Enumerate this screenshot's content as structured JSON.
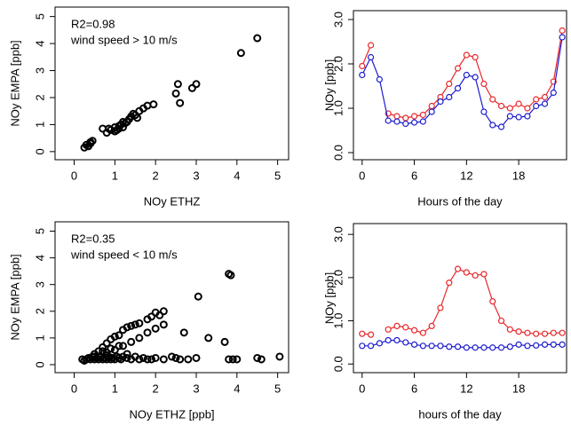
{
  "chart_data": [
    {
      "type": "scatter",
      "x_label": "NOy ETHZ",
      "y_label": "NOy EMPA [ppb]",
      "annotations": [
        "R2=0.98",
        "wind speed > 10 m/s"
      ],
      "color": "#000000",
      "x": [
        0.25,
        0.3,
        0.35,
        0.4,
        0.45,
        0.4,
        0.7,
        0.8,
        0.85,
        0.9,
        1.0,
        1.0,
        1.05,
        1.1,
        1.15,
        1.2,
        1.25,
        1.3,
        1.35,
        1.4,
        1.45,
        1.5,
        1.55,
        1.6,
        1.7,
        1.8,
        1.95,
        1.2,
        1.1,
        2.5,
        2.55,
        2.6,
        2.9,
        3.0,
        4.1,
        4.5
      ],
      "y": [
        0.15,
        0.25,
        0.2,
        0.35,
        0.4,
        0.3,
        0.85,
        0.7,
        0.85,
        0.8,
        0.9,
        0.75,
        0.8,
        0.95,
        1.0,
        0.9,
        1.05,
        1.1,
        1.2,
        1.3,
        1.4,
        1.35,
        1.25,
        1.5,
        1.6,
        1.7,
        1.75,
        1.1,
        0.85,
        2.15,
        2.5,
        1.8,
        2.35,
        2.5,
        3.65,
        4.2
      ],
      "xlim": [
        -0.47,
        5.27
      ],
      "ylim": [
        -0.3,
        5.35
      ],
      "xticks": [
        0,
        1,
        2,
        3,
        4,
        5
      ],
      "yticks": [
        0,
        1,
        2,
        3,
        4,
        5
      ]
    },
    {
      "type": "line",
      "x_label": "Hours of the day",
      "y_label": "NOy [ppb]",
      "x": [
        0,
        1,
        2,
        3,
        4,
        5,
        6,
        7,
        8,
        9,
        10,
        11,
        12,
        13,
        14,
        15,
        16,
        17,
        18,
        19,
        20,
        21,
        22,
        23
      ],
      "series": [
        {
          "color": "#e8262a",
          "values": [
            1.95,
            2.42,
            null,
            0.88,
            0.82,
            0.78,
            0.82,
            0.85,
            1.05,
            1.25,
            1.55,
            1.9,
            2.2,
            2.15,
            1.55,
            1.2,
            1.05,
            1.0,
            1.1,
            1.0,
            1.2,
            1.25,
            1.6,
            2.75
          ]
        },
        {
          "color": "#1c1cd0",
          "values": [
            1.75,
            2.15,
            1.65,
            0.72,
            0.7,
            0.65,
            0.68,
            0.7,
            0.92,
            1.15,
            1.25,
            1.45,
            1.75,
            1.7,
            0.92,
            0.62,
            0.58,
            0.82,
            0.8,
            0.82,
            1.05,
            1.1,
            1.35,
            2.6
          ]
        }
      ],
      "xlim": [
        -1.0,
        23.5
      ],
      "ylim": [
        -0.16,
        3.2
      ],
      "xticks": [
        0,
        6,
        12,
        18
      ],
      "yticks": [
        {
          "value": 0,
          "label": "0.0"
        },
        {
          "value": 1,
          "label": "1.0"
        },
        {
          "value": 2,
          "label": "2.0"
        },
        {
          "value": 3,
          "label": "3.0"
        }
      ]
    },
    {
      "type": "scatter",
      "x_label": "NOy ETHZ [ppb]",
      "y_label": "NOy EMPA [ppb]",
      "annotations": [
        "R2=0.35",
        "wind speed < 10 m/s"
      ],
      "color": "#000000",
      "x": [
        0.2,
        0.25,
        0.3,
        0.35,
        0.4,
        0.45,
        0.5,
        0.55,
        0.6,
        0.65,
        0.7,
        0.75,
        0.8,
        0.85,
        0.9,
        0.95,
        1.0,
        1.05,
        1.1,
        1.15,
        1.2,
        1.3,
        1.4,
        1.5,
        1.6,
        1.7,
        1.8,
        1.9,
        2.0,
        2.2,
        2.4,
        2.5,
        2.6,
        2.8,
        3.0,
        0.5,
        0.6,
        0.7,
        0.8,
        0.9,
        1.0,
        1.1,
        1.2,
        1.3,
        1.4,
        1.5,
        1.6,
        1.8,
        1.9,
        2.0,
        2.1,
        2.2,
        0.6,
        0.8,
        1.0,
        1.2,
        1.4,
        1.6,
        1.8,
        2.0,
        2.2,
        0.7,
        0.9,
        1.1,
        1.3,
        0.5,
        0.8,
        2.7,
        3.05,
        3.3,
        3.7,
        3.8,
        3.85,
        3.8,
        3.9,
        4.0,
        4.5,
        4.6,
        5.05
      ],
      "y": [
        0.2,
        0.15,
        0.2,
        0.25,
        0.2,
        0.3,
        0.2,
        0.25,
        0.2,
        0.3,
        0.2,
        0.25,
        0.2,
        0.3,
        0.2,
        0.25,
        0.2,
        0.3,
        0.25,
        0.2,
        0.3,
        0.25,
        0.2,
        0.3,
        0.2,
        0.25,
        0.2,
        0.2,
        0.25,
        0.2,
        0.3,
        0.25,
        0.2,
        0.2,
        0.25,
        0.4,
        0.5,
        0.65,
        0.8,
        0.95,
        1.05,
        1.1,
        1.3,
        1.4,
        1.45,
        1.5,
        1.55,
        1.7,
        1.8,
        1.95,
        1.85,
        2.0,
        0.3,
        0.45,
        0.55,
        0.7,
        0.85,
        1.0,
        1.2,
        1.35,
        1.5,
        0.5,
        0.6,
        0.7,
        0.4,
        0.3,
        0.35,
        1.2,
        2.55,
        1.0,
        0.85,
        3.4,
        3.35,
        0.2,
        0.2,
        0.2,
        0.25,
        0.2,
        0.3
      ],
      "xlim": [
        -0.47,
        5.27
      ],
      "ylim": [
        -0.3,
        5.35
      ],
      "xticks": [
        0,
        1,
        2,
        3,
        4,
        5
      ],
      "yticks": [
        0,
        1,
        2,
        3,
        4,
        5
      ]
    },
    {
      "type": "line",
      "x_label": "hours of the day",
      "y_label": "NOy [ppb]",
      "x": [
        0,
        1,
        2,
        3,
        4,
        5,
        6,
        7,
        8,
        9,
        10,
        11,
        12,
        13,
        14,
        15,
        16,
        17,
        18,
        19,
        20,
        21,
        22,
        23
      ],
      "series": [
        {
          "color": "#e8262a",
          "values": [
            0.7,
            0.68,
            null,
            0.8,
            0.88,
            0.85,
            0.78,
            0.72,
            0.88,
            1.3,
            1.88,
            2.2,
            2.12,
            2.05,
            2.08,
            1.45,
            1.0,
            0.8,
            0.75,
            0.72,
            0.7,
            0.7,
            0.72,
            0.72
          ]
        },
        {
          "color": "#1c1cd0",
          "values": [
            0.42,
            0.42,
            0.48,
            0.55,
            0.55,
            0.5,
            0.45,
            0.42,
            0.42,
            0.42,
            0.4,
            0.4,
            0.38,
            0.38,
            0.38,
            0.38,
            0.38,
            0.4,
            0.45,
            0.42,
            0.43,
            0.45,
            0.45,
            0.45
          ]
        }
      ],
      "xlim": [
        -1.0,
        23.5
      ],
      "ylim": [
        -0.2,
        3.25
      ],
      "xticks": [
        0,
        6,
        12,
        18
      ],
      "yticks": [
        {
          "value": 0,
          "label": "0.0"
        },
        {
          "value": 1,
          "label": "1.0"
        },
        {
          "value": 2,
          "label": "2.0"
        },
        {
          "value": 3,
          "label": "3.0"
        }
      ]
    }
  ]
}
